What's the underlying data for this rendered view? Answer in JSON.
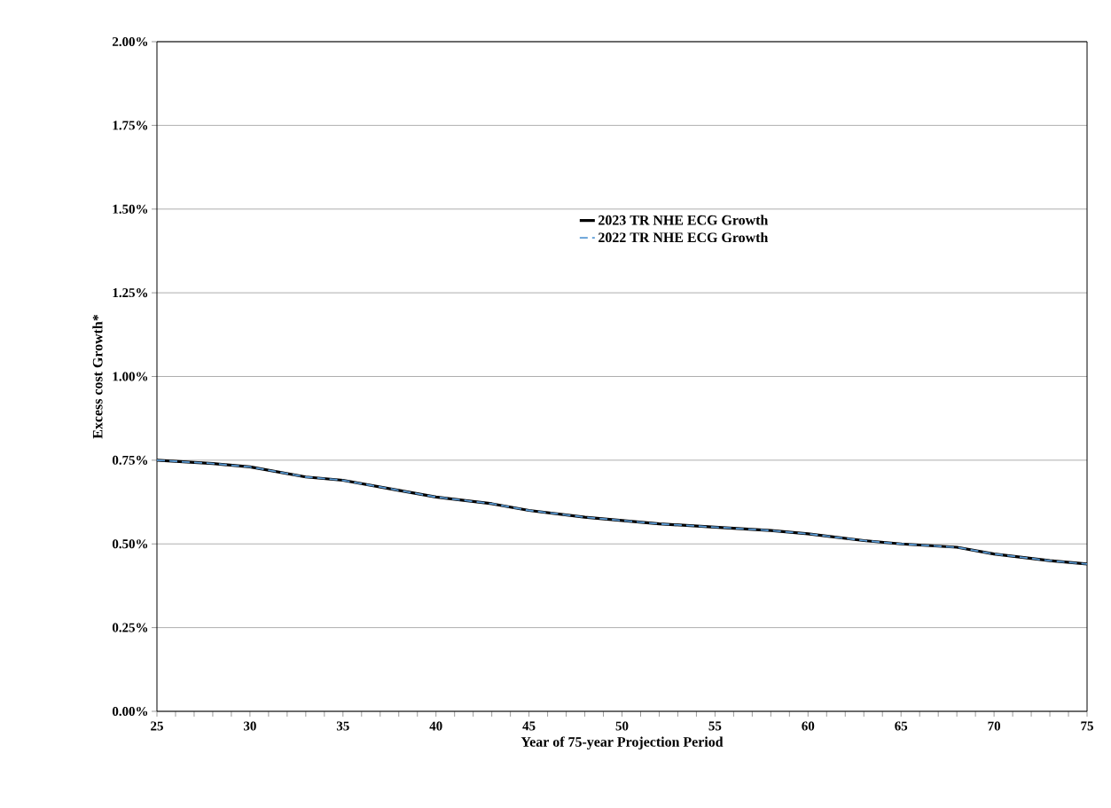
{
  "chart_data": {
    "type": "line",
    "xlabel": "Year of 75-year Projection Period",
    "ylabel": "Excess cost Growth*",
    "x": [
      25,
      28,
      30,
      33,
      35,
      38,
      40,
      43,
      45,
      48,
      50,
      52,
      55,
      58,
      60,
      63,
      65,
      68,
      70,
      73,
      75
    ],
    "series": [
      {
        "name": "2023 TR NHE ECG Growth",
        "color": "#000000",
        "line_style": "solid",
        "values": [
          0.75,
          0.74,
          0.73,
          0.7,
          0.69,
          0.66,
          0.64,
          0.62,
          0.6,
          0.58,
          0.57,
          0.56,
          0.55,
          0.54,
          0.53,
          0.51,
          0.5,
          0.49,
          0.47,
          0.45,
          0.44
        ]
      },
      {
        "name": "2022 TR NHE ECG Growth",
        "color": "#5b9bd5",
        "line_style": "dashed",
        "values": [
          0.75,
          0.74,
          0.73,
          0.7,
          0.69,
          0.66,
          0.64,
          0.62,
          0.6,
          0.58,
          0.57,
          0.56,
          0.55,
          0.54,
          0.53,
          0.51,
          0.5,
          0.49,
          0.47,
          0.45,
          0.44
        ]
      }
    ],
    "xlim": [
      25,
      75
    ],
    "xticks": [
      25,
      30,
      35,
      40,
      45,
      50,
      55,
      60,
      65,
      70,
      75
    ],
    "ylim": [
      0,
      2
    ],
    "yticks": [
      {
        "value": 0,
        "label": "0.00%"
      },
      {
        "value": 0.25,
        "label": "0.25%"
      },
      {
        "value": 0.5,
        "label": "0.50%"
      },
      {
        "value": 0.75,
        "label": "0.75%"
      },
      {
        "value": 1,
        "label": "1.00%"
      },
      {
        "value": 1.25,
        "label": "1.25%"
      },
      {
        "value": 1.5,
        "label": "1.50%"
      },
      {
        "value": 1.75,
        "label": "1.75%"
      },
      {
        "value": 2,
        "label": "2.00%"
      }
    ],
    "grid": "y",
    "legend": "right",
    "marker": "none"
  }
}
